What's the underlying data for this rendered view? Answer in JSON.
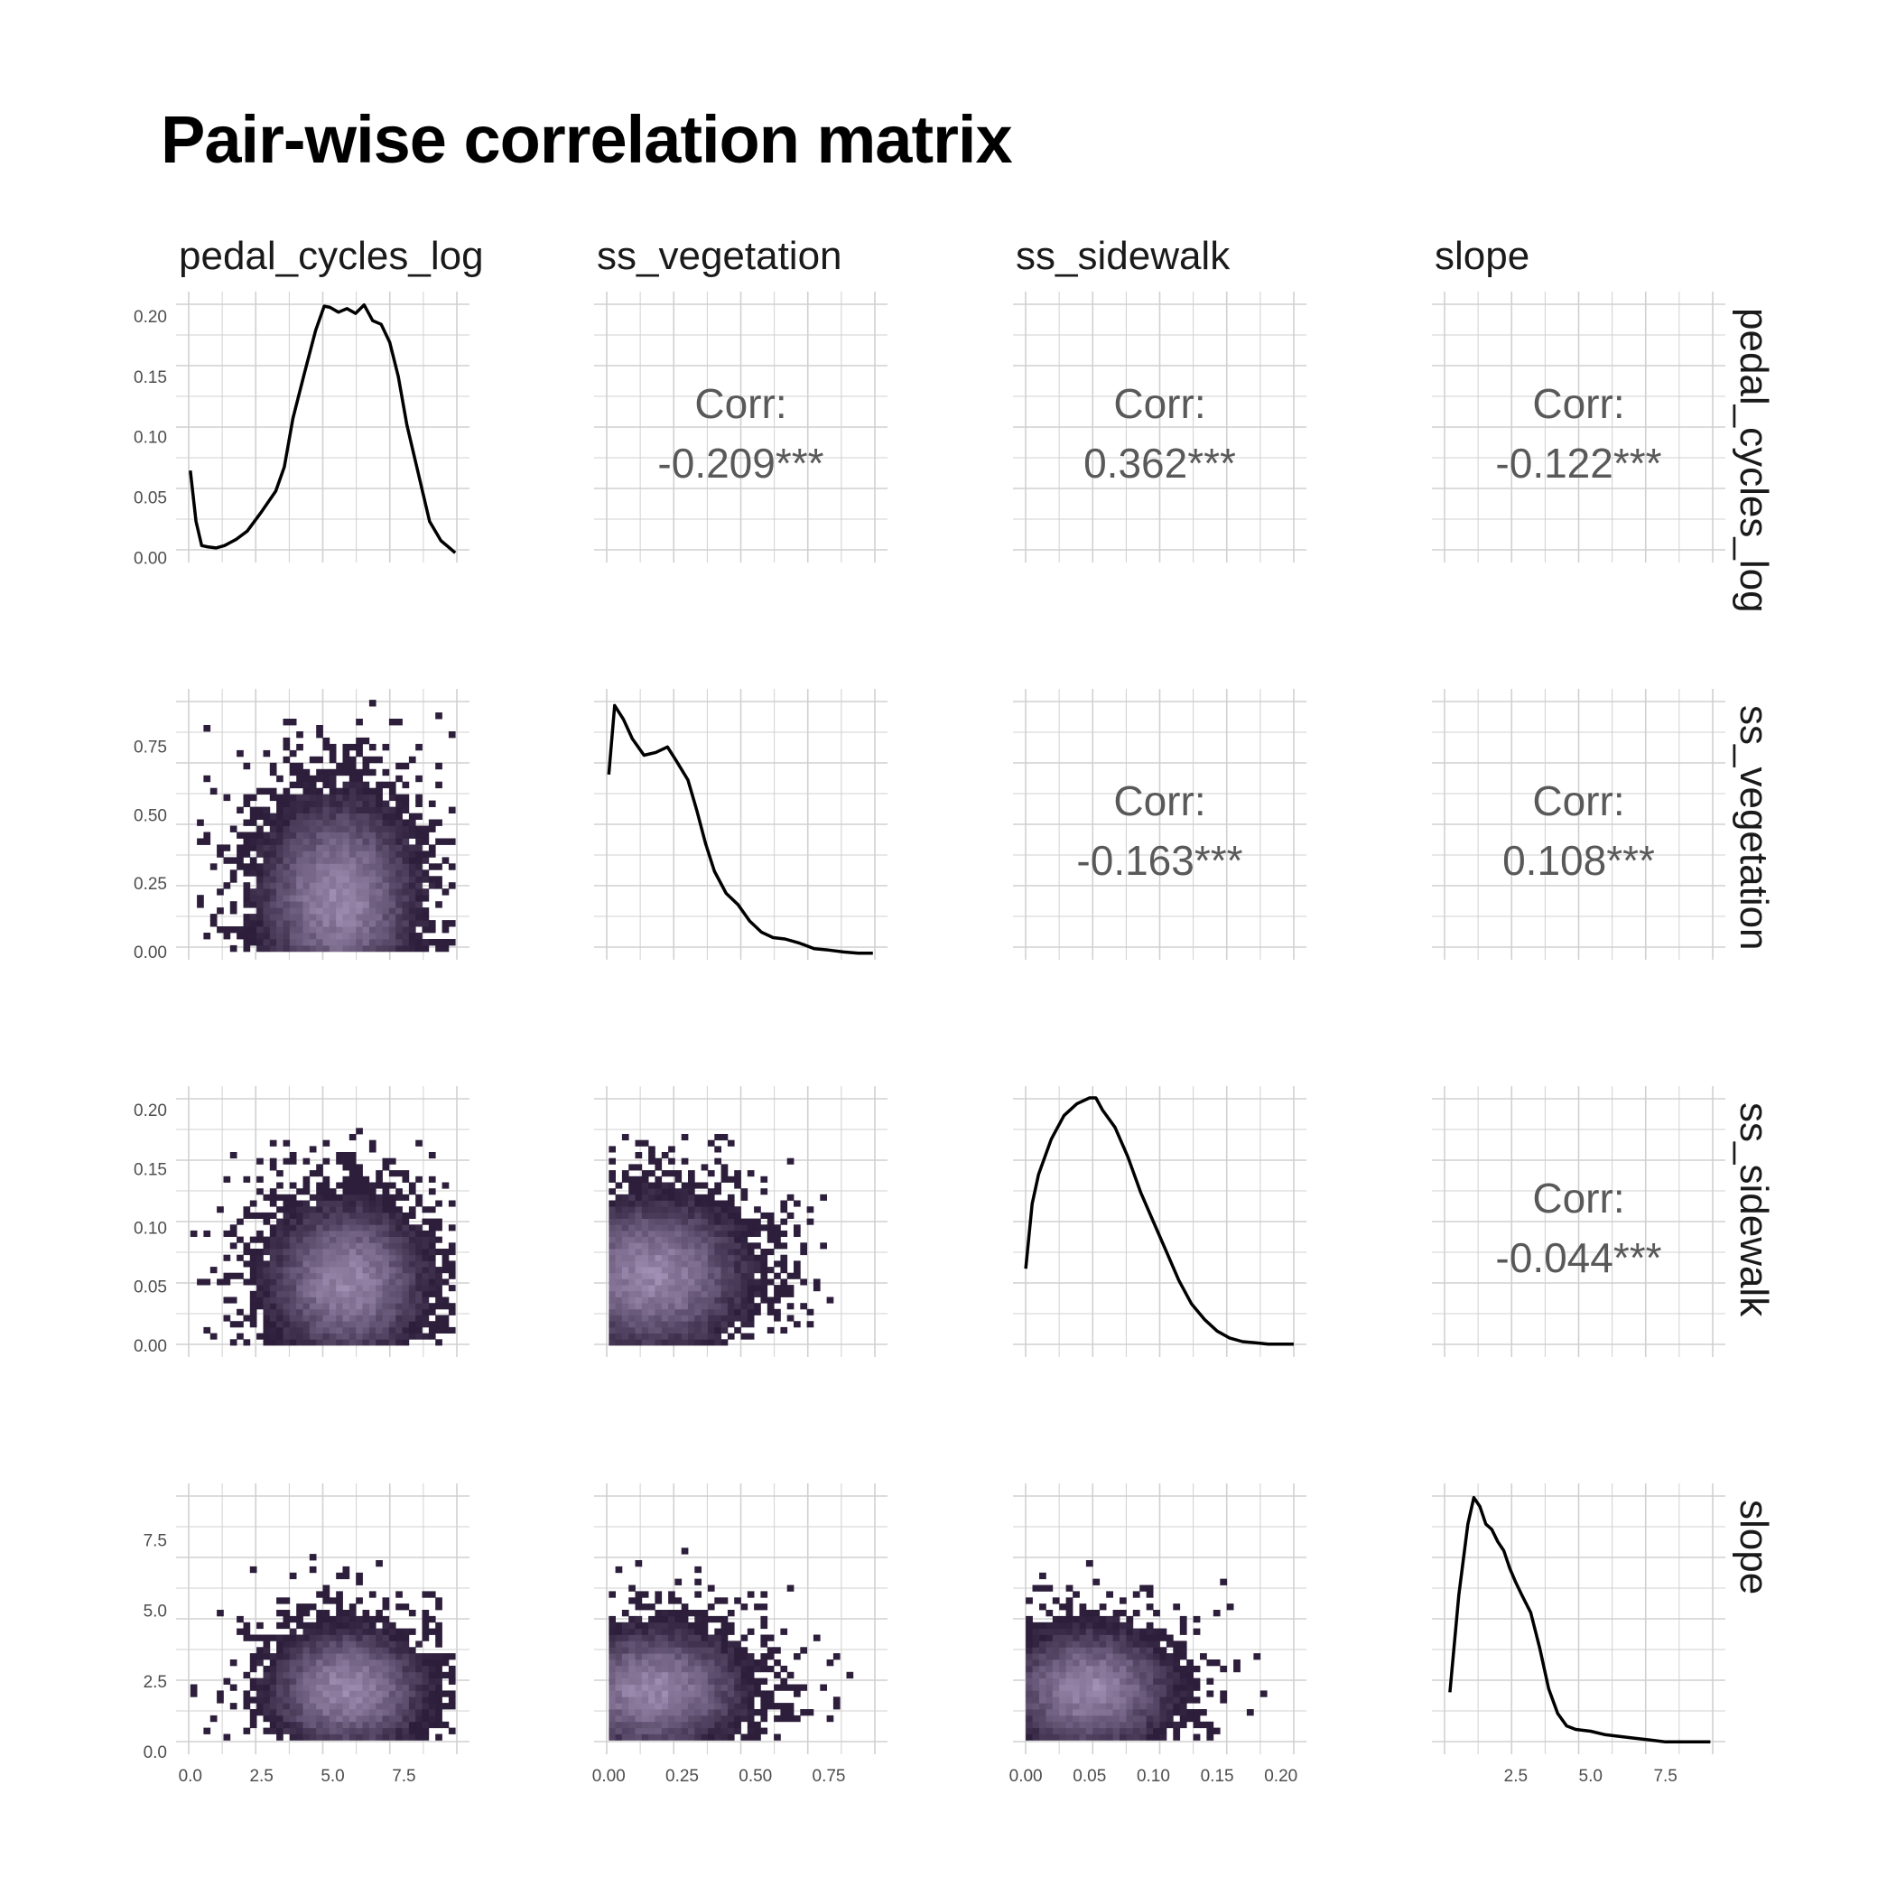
{
  "title": "Pair-wise correlation matrix",
  "variables": [
    "pedal_cycles_log",
    "ss_vegetation",
    "ss_sidewalk",
    "slope"
  ],
  "colors": {
    "density_line": "#000000",
    "grid": "#d0d0d0",
    "hex_dark": "#2d1f3b",
    "hex_light": "#c8b4dc",
    "corr_text": "#595959"
  },
  "chart_data": [
    {
      "type": "line",
      "panel": "pedal_cycles_log diagonal",
      "x": [
        0,
        0.2,
        0.4,
        0.6,
        0.9,
        1.2,
        1.6,
        2.0,
        2.5,
        3.0,
        3.3,
        3.6,
        4.0,
        4.4,
        4.7,
        4.9,
        5.2,
        5.5,
        5.8,
        6.1,
        6.4,
        6.7,
        7.0,
        7.3,
        7.6,
        8.0,
        8.4,
        8.8,
        9.1,
        9.3
      ],
      "y": [
        0.072,
        0.03,
        0.01,
        0.009,
        0.008,
        0.01,
        0.015,
        0.022,
        0.038,
        0.055,
        0.075,
        0.115,
        0.152,
        0.188,
        0.208,
        0.207,
        0.203,
        0.206,
        0.202,
        0.209,
        0.196,
        0.193,
        0.178,
        0.15,
        0.11,
        0.07,
        0.03,
        0.014,
        0.008,
        0.004
      ],
      "xlim": [
        -0.5,
        9.8
      ],
      "ylim": [
        -0.004,
        0.22
      ],
      "yticks": [
        "0.00",
        "0.05",
        "0.10",
        "0.15",
        "0.20"
      ],
      "ytick_values": [
        0,
        0.05,
        0.1,
        0.15,
        0.2
      ]
    },
    {
      "type": "line",
      "panel": "ss_vegetation diagonal",
      "x": [
        0,
        0.02,
        0.05,
        0.08,
        0.12,
        0.16,
        0.2,
        0.23,
        0.27,
        0.3,
        0.33,
        0.36,
        0.4,
        0.44,
        0.48,
        0.52,
        0.56,
        0.6,
        0.65,
        0.7,
        0.75,
        0.8,
        0.85,
        0.9
      ],
      "y": [
        0.65,
        0.9,
        0.85,
        0.78,
        0.72,
        0.73,
        0.75,
        0.7,
        0.63,
        0.52,
        0.4,
        0.3,
        0.22,
        0.18,
        0.12,
        0.08,
        0.06,
        0.055,
        0.04,
        0.02,
        0.015,
        0.008,
        0.004,
        0.004
      ],
      "xlim": [
        -0.05,
        0.95
      ],
      "ylim": [
        -0.02,
        0.96
      ],
      "yticks": [
        "0.00",
        "0.25",
        "0.50",
        "0.75"
      ],
      "ytick_values": [
        0,
        0.25,
        0.5,
        0.75
      ]
    },
    {
      "type": "line",
      "panel": "ss_sidewalk diagonal",
      "x": [
        0,
        0.005,
        0.01,
        0.015,
        0.02,
        0.03,
        0.04,
        0.05,
        0.055,
        0.06,
        0.07,
        0.08,
        0.09,
        0.1,
        0.11,
        0.12,
        0.13,
        0.14,
        0.15,
        0.16,
        0.17,
        0.18,
        0.19,
        0.2,
        0.21
      ],
      "y": [
        0.065,
        0.12,
        0.145,
        0.16,
        0.175,
        0.195,
        0.205,
        0.21,
        0.21,
        0.2,
        0.185,
        0.16,
        0.13,
        0.105,
        0.08,
        0.055,
        0.035,
        0.022,
        0.012,
        0.006,
        0.003,
        0.002,
        0.001,
        0.001,
        0.001
      ],
      "xlim": [
        -0.01,
        0.22
      ],
      "ylim": [
        -0.01,
        0.22
      ],
      "yticks": [
        "0.00",
        "0.05",
        "0.10",
        "0.15",
        "0.20"
      ],
      "ytick_values": [
        0,
        0.05,
        0.1,
        0.15,
        0.2
      ]
    },
    {
      "type": "line",
      "panel": "slope diagonal",
      "x": [
        0.3,
        0.6,
        0.9,
        1.1,
        1.3,
        1.5,
        1.7,
        1.9,
        2.1,
        2.3,
        2.5,
        2.7,
        3.0,
        3.3,
        3.6,
        3.9,
        4.2,
        4.5,
        5.0,
        5.5,
        6.0,
        6.5,
        7.0,
        7.5,
        8.0,
        8.5,
        9.0
      ],
      "y": [
        0.3,
        0.85,
        1.25,
        1.4,
        1.35,
        1.25,
        1.22,
        1.15,
        1.1,
        1.0,
        0.92,
        0.85,
        0.75,
        0.55,
        0.32,
        0.18,
        0.11,
        0.09,
        0.08,
        0.06,
        0.05,
        0.04,
        0.03,
        0.02,
        0.02,
        0.02,
        0.02
      ],
      "xlim": [
        -0.3,
        9.5
      ],
      "ylim": [
        -0.05,
        1.48
      ],
      "xticks": [
        "2.5",
        "5.0",
        "7.5"
      ],
      "xtick_values": [
        2.5,
        5,
        7.5
      ]
    },
    {
      "type": "table",
      "panel": "upper correlations",
      "cells": [
        {
          "row": 0,
          "col": 1,
          "label": "Corr:",
          "value": "-0.209***"
        },
        {
          "row": 0,
          "col": 2,
          "label": "Corr:",
          "value": "0.362***"
        },
        {
          "row": 0,
          "col": 3,
          "label": "Corr:",
          "value": "-0.122***"
        },
        {
          "row": 1,
          "col": 2,
          "label": "Corr:",
          "value": "-0.163***"
        },
        {
          "row": 1,
          "col": 3,
          "label": "Corr:",
          "value": "0.108***"
        },
        {
          "row": 2,
          "col": 3,
          "label": "Corr:",
          "value": "-0.044***"
        }
      ]
    },
    {
      "type": "heatmap",
      "panel": "lower hexbin density",
      "cells": [
        {
          "row": 1,
          "col": 0,
          "xlim": [
            -0.5,
            9.8
          ],
          "ylim": [
            -0.03,
            0.96
          ],
          "center": [
            5.2,
            0.2
          ],
          "spread": [
            1.9,
            0.25
          ],
          "xrange": [
            0,
            9.3
          ],
          "yrange": [
            0,
            0.92
          ]
        },
        {
          "row": 2,
          "col": 0,
          "xlim": [
            -0.5,
            9.8
          ],
          "ylim": [
            -0.01,
            0.22
          ],
          "center": [
            5.5,
            0.055
          ],
          "spread": [
            1.9,
            0.045
          ],
          "xrange": [
            0,
            9.3
          ],
          "yrange": [
            0,
            0.205
          ]
        },
        {
          "row": 2,
          "col": 1,
          "xlim": [
            -0.05,
            0.95
          ],
          "ylim": [
            -0.01,
            0.22
          ],
          "center": [
            0.15,
            0.06
          ],
          "spread": [
            0.22,
            0.045
          ],
          "xrange": [
            0,
            0.9
          ],
          "yrange": [
            0,
            0.205
          ]
        },
        {
          "row": 3,
          "col": 0,
          "xlim": [
            -0.5,
            9.8
          ],
          "ylim": [
            -0.1,
            9.5
          ],
          "center": [
            5.5,
            2.2
          ],
          "spread": [
            1.9,
            1.5
          ],
          "xrange": [
            0,
            9.3
          ],
          "yrange": [
            0.4,
            9.2
          ]
        },
        {
          "row": 3,
          "col": 1,
          "xlim": [
            -0.05,
            0.95
          ],
          "ylim": [
            -0.1,
            9.5
          ],
          "center": [
            0.15,
            2.2
          ],
          "spread": [
            0.22,
            1.5
          ],
          "xrange": [
            0,
            0.9
          ],
          "yrange": [
            0.4,
            9.2
          ]
        },
        {
          "row": 3,
          "col": 2,
          "xlim": [
            -0.01,
            0.22
          ],
          "ylim": [
            -0.1,
            9.5
          ],
          "center": [
            0.05,
            2.2
          ],
          "spread": [
            0.045,
            1.5
          ],
          "xrange": [
            0,
            0.21
          ],
          "yrange": [
            0.4,
            9.2
          ]
        }
      ]
    }
  ],
  "axes": {
    "bottom_ticks": [
      {
        "labels": [
          "0.0",
          "2.5",
          "5.0",
          "7.5"
        ],
        "values": [
          0,
          2.5,
          5,
          7.5
        ],
        "xlim": [
          -0.5,
          9.8
        ]
      },
      {
        "labels": [
          "0.00",
          "0.25",
          "0.50",
          "0.75"
        ],
        "values": [
          0,
          0.25,
          0.5,
          0.75
        ],
        "xlim": [
          -0.05,
          0.95
        ]
      },
      {
        "labels": [
          "0.00",
          "0.05",
          "0.10",
          "0.15",
          "0.20"
        ],
        "values": [
          0,
          0.05,
          0.1,
          0.15,
          0.2
        ],
        "xlim": [
          -0.01,
          0.22
        ]
      },
      {
        "labels": [
          "2.5",
          "5.0",
          "7.5"
        ],
        "values": [
          2.5,
          5,
          7.5
        ],
        "xlim": [
          -0.3,
          9.5
        ]
      }
    ],
    "left_ticks": [
      {
        "labels": [
          "0.00",
          "0.05",
          "0.10",
          "0.15",
          "0.20"
        ],
        "values": [
          0,
          0.05,
          0.1,
          0.15,
          0.2
        ],
        "ylim": [
          -0.004,
          0.22
        ]
      },
      {
        "labels": [
          "0.00",
          "0.25",
          "0.50",
          "0.75"
        ],
        "values": [
          0,
          0.25,
          0.5,
          0.75
        ],
        "ylim": [
          -0.03,
          0.96
        ]
      },
      {
        "labels": [
          "0.00",
          "0.05",
          "0.10",
          "0.15",
          "0.20"
        ],
        "values": [
          0,
          0.05,
          0.1,
          0.15,
          0.2
        ],
        "ylim": [
          -0.01,
          0.22
        ]
      },
      {
        "labels": [
          "0.0",
          "2.5",
          "5.0",
          "7.5"
        ],
        "values": [
          0,
          2.5,
          5,
          7.5
        ],
        "ylim": [
          -0.1,
          9.5
        ]
      }
    ]
  }
}
